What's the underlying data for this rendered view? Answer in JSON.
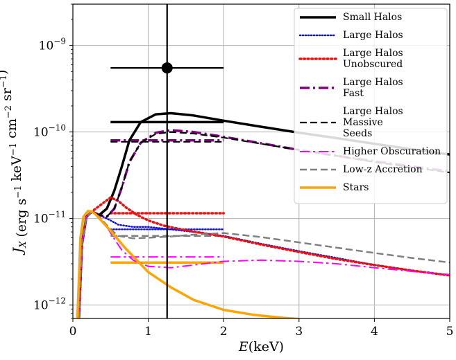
{
  "chart_data": {
    "type": "line",
    "xlabel": "E(keV)",
    "ylabel": "J_X (erg s^-1 keV^-1 cm^-2 sr^-1)",
    "xlim": [
      0,
      5
    ],
    "ylim": [
      7e-13,
      3e-09
    ],
    "yscale": "log",
    "grid": true,
    "legend_position": "top-right",
    "x_ticks": [
      0,
      1,
      2,
      3,
      4,
      5
    ],
    "x_tick_labels": [
      "0",
      "1",
      "2",
      "3",
      "4",
      "5"
    ],
    "y_ticks": [
      1e-12,
      1e-11,
      1e-10,
      1e-09
    ],
    "y_tick_labels": [
      "10^-12",
      "10^-11",
      "10^-10",
      "10^-9"
    ],
    "series": [
      {
        "name": "Small Halos",
        "color": "#000000",
        "dash": "solid",
        "width": 3.5,
        "curve": {
          "x": [
            0.08,
            0.12,
            0.18,
            0.25,
            0.35,
            0.45,
            0.55,
            0.65,
            0.75,
            0.9,
            1.1,
            1.3,
            1.6,
            2.0,
            2.5,
            3.0,
            3.5,
            4.0,
            4.5,
            5.0
          ],
          "y": [
            7e-13,
            5e-12,
            1.05e-11,
            1.2e-11,
            1.1e-11,
            1.3e-11,
            2.1e-11,
            4e-11,
            8e-11,
            1.3e-10,
            1.6e-10,
            1.65e-10,
            1.55e-10,
            1.35e-10,
            1.15e-10,
            9.8e-11,
            8.5e-11,
            7.3e-11,
            6.3e-11,
            5.5e-11
          ]
        },
        "band": {
          "x": [
            0.5,
            2.0
          ],
          "y": 1.3e-10
        }
      },
      {
        "name": "Large Halos",
        "color": "#1010e0",
        "dash": "dotted",
        "width": 2.5,
        "curve": {
          "x": [
            0.08,
            0.12,
            0.18,
            0.25,
            0.35,
            0.5,
            0.6,
            0.8,
            1.0,
            1.3,
            1.6,
            2.0,
            2.5,
            3.0,
            3.5,
            4.0,
            4.5,
            5.0
          ],
          "y": [
            7e-13,
            5e-12,
            1.05e-11,
            1.2e-11,
            1.1e-11,
            9.5e-12,
            8.5e-12,
            8e-12,
            8e-12,
            7.5e-12,
            7e-12,
            6.3e-12,
            5.1e-12,
            4.2e-12,
            3.5e-12,
            2.9e-12,
            2.5e-12,
            2.2e-12
          ]
        },
        "band": {
          "x": [
            0.5,
            2.0
          ],
          "y": 7.5e-12
        }
      },
      {
        "name": "Large Halos Unobscured",
        "color": "#ee1010",
        "dash": "dotted",
        "width": 3.5,
        "curve": {
          "x": [
            0.08,
            0.12,
            0.18,
            0.25,
            0.35,
            0.5,
            0.6,
            0.7,
            0.85,
            1.0,
            1.2,
            1.5,
            2.0,
            2.5,
            3.0,
            3.5,
            4.0,
            4.5,
            5.0
          ],
          "y": [
            7e-13,
            5e-12,
            1.05e-11,
            1.2e-11,
            1.4e-11,
            1.75e-11,
            1.6e-11,
            1.35e-11,
            1.1e-11,
            9.5e-12,
            8.3e-12,
            7.3e-12,
            6.2e-12,
            5e-12,
            4.1e-12,
            3.4e-12,
            2.9e-12,
            2.5e-12,
            2.2e-12
          ]
        },
        "band": {
          "x": [
            0.5,
            2.0
          ],
          "y": 1.15e-11
        }
      },
      {
        "name": "Large Halos Fast",
        "color": "#800080",
        "dash": "dashdot",
        "width": 3.5,
        "curve": {
          "x": [
            0.08,
            0.12,
            0.18,
            0.25,
            0.35,
            0.45,
            0.55,
            0.65,
            0.75,
            0.9,
            1.1,
            1.3,
            1.6,
            2.0,
            2.5,
            3.0,
            3.5,
            4.0,
            4.5,
            5.0
          ],
          "y": [
            7e-13,
            5e-12,
            1.05e-11,
            1.2e-11,
            1.1e-11,
            1.05e-11,
            1.3e-11,
            2.3e-11,
            4.5e-11,
            7.5e-11,
            9.8e-11,
            1.05e-10,
            1e-10,
            8.8e-11,
            7.4e-11,
            6.2e-11,
            5.3e-11,
            4.6e-11,
            4e-11,
            3.5e-11
          ]
        },
        "band": {
          "x": [
            0.5,
            2.0
          ],
          "y": 8e-11
        }
      },
      {
        "name": "Large Halos Massive Seeds",
        "color": "#000000",
        "dash": "dashed",
        "width": 2.2,
        "curve": {
          "x": [
            0.08,
            0.12,
            0.18,
            0.25,
            0.35,
            0.45,
            0.55,
            0.65,
            0.75,
            0.9,
            1.1,
            1.3,
            1.6,
            2.0,
            2.5,
            3.0,
            3.5,
            4.0,
            4.5,
            5.0
          ],
          "y": [
            7e-13,
            5e-12,
            1.05e-11,
            1.2e-11,
            1.1e-11,
            1.05e-11,
            1.3e-11,
            2.3e-11,
            4.5e-11,
            7.5e-11,
            9.5e-11,
            1e-10,
            9.6e-11,
            8.6e-11,
            7.3e-11,
            6.2e-11,
            5.3e-11,
            4.5e-11,
            3.9e-11,
            3.4e-11
          ]
        },
        "band": {
          "x": [
            0.5,
            2.0
          ],
          "y": 7.7e-11
        }
      },
      {
        "name": "Higher Obscuration",
        "color": "#ff00ff",
        "dash": "dashdot",
        "width": 2,
        "curve": {
          "x": [
            0.08,
            0.12,
            0.18,
            0.25,
            0.35,
            0.45,
            0.55,
            0.65,
            0.8,
            1.0,
            1.3,
            1.6,
            2.0,
            2.5,
            3.0,
            3.5,
            4.0,
            4.5,
            5.0
          ],
          "y": [
            7e-13,
            5e-12,
            1.05e-11,
            1.2e-11,
            1.05e-11,
            8e-12,
            5.8e-12,
            4.3e-12,
            3.3e-12,
            2.8e-12,
            2.7e-12,
            2.9e-12,
            3.2e-12,
            3.3e-12,
            3.2e-12,
            3e-12,
            2.7e-12,
            2.45e-12,
            2.25e-12
          ]
        },
        "band": {
          "x": [
            0.5,
            2.0
          ],
          "y": 3.6e-12
        }
      },
      {
        "name": "Low-z Accretion",
        "color": "#808080",
        "dash": "dashed",
        "width": 2.5,
        "curve": {
          "x": [
            0.08,
            0.12,
            0.18,
            0.25,
            0.35,
            0.5,
            0.6,
            0.8,
            1.0,
            1.3,
            1.6,
            2.0,
            2.5,
            3.0,
            3.5,
            4.0,
            4.5,
            5.0
          ],
          "y": [
            7e-13,
            5e-12,
            1.05e-11,
            1.2e-11,
            1.05e-11,
            7.5e-12,
            6.3e-12,
            5.9e-12,
            6e-12,
            6.2e-12,
            6.5e-12,
            6.8e-12,
            6.1e-12,
            5.3e-12,
            4.6e-12,
            4e-12,
            3.5e-12,
            3.1e-12
          ]
        },
        "band": {
          "x": [
            0.5,
            2.0
          ],
          "y": 6.3e-12
        }
      },
      {
        "name": "Stars",
        "color": "#ffa500",
        "dash": "solid",
        "width": 3.5,
        "curve": {
          "x": [
            0.06,
            0.1,
            0.14,
            0.2,
            0.25,
            0.3,
            0.4,
            0.5,
            0.7,
            1.0,
            1.3,
            1.6,
            2.0,
            2.4,
            2.8,
            3.0
          ],
          "y": [
            7e-13,
            6e-12,
            1.05e-11,
            1.22e-11,
            1.2e-11,
            1.12e-11,
            9e-12,
            7.2e-12,
            4.5e-12,
            2.4e-12,
            1.6e-12,
            1.15e-12,
            8.8e-13,
            7.7e-13,
            7.1e-13,
            6.9e-13
          ]
        },
        "band": {
          "x": [
            0.5,
            2.0
          ],
          "y": 3.1e-12
        }
      }
    ],
    "data_point": {
      "x": 1.25,
      "y": 5.5e-10,
      "xerr": [
        0.5,
        2.0
      ],
      "yerr": [
        7e-13,
        3e-09
      ]
    }
  }
}
